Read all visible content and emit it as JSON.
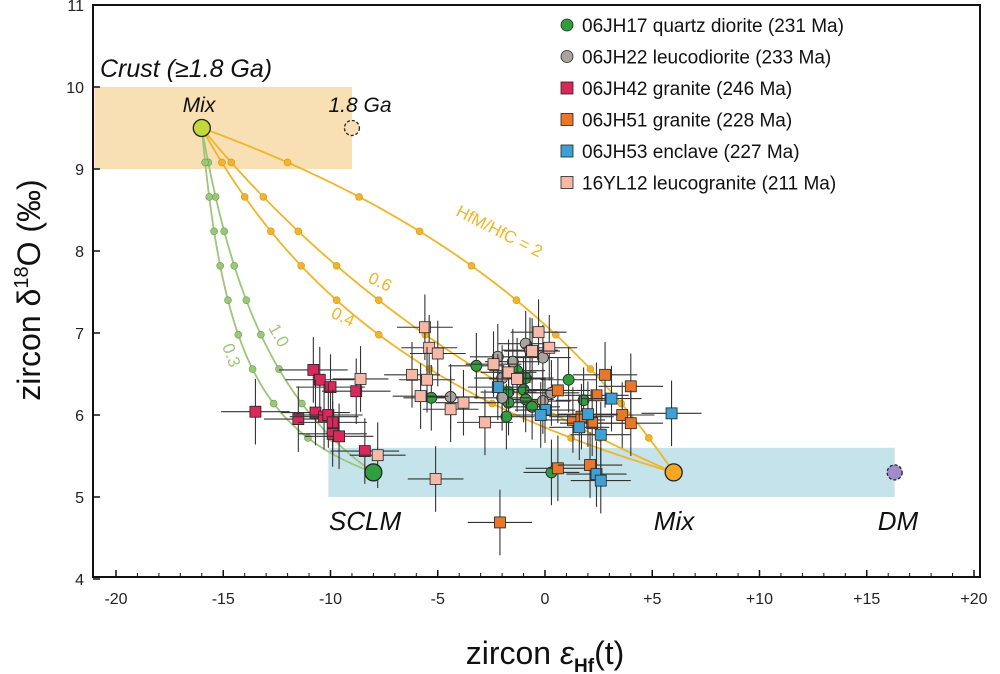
{
  "chart_data": {
    "type": "scatter",
    "title": "",
    "xlabel": {
      "prefix": "zircon ",
      "symbol": "ε",
      "sub": "Hf",
      "suffix": "(t)"
    },
    "ylabel": {
      "prefix": "zircon δ",
      "sup": "18",
      "suffix": "O (‰)"
    },
    "xlim": [
      -21,
      20.3
    ],
    "ylim": [
      4,
      11
    ],
    "xticks": [
      -20,
      -15,
      -10,
      -5,
      0,
      5,
      10,
      15,
      20
    ],
    "xtick_labels": [
      "-20",
      "-15",
      "-10",
      "-5",
      "0",
      "+5",
      "+10",
      "+15",
      "+20"
    ],
    "yticks": [
      4,
      5,
      6,
      7,
      8,
      9,
      10,
      11
    ],
    "ytick_labels": [
      "4",
      "5",
      "6",
      "7",
      "8",
      "9",
      "10",
      "11"
    ],
    "grid": false,
    "legend_position": "top-right",
    "series": [
      {
        "name": "06JH17 quartz diorite (231 Ma)",
        "marker": "circle",
        "color": "#2e9e3e",
        "xerr": 1.3,
        "yerr": 0.4,
        "points": [
          [
            -5.3,
            6.21
          ],
          [
            -3.2,
            6.6
          ],
          [
            -1.3,
            6.54
          ],
          [
            -0.9,
            6.45
          ],
          [
            -1.7,
            6.28
          ],
          [
            -1.0,
            6.31
          ],
          [
            -0.9,
            6.19
          ],
          [
            -1.7,
            6.15
          ],
          [
            -1.8,
            5.98
          ],
          [
            -0.6,
            6.1
          ],
          [
            1.1,
            6.43
          ],
          [
            1.8,
            6.18
          ],
          [
            0.3,
            5.3
          ]
        ]
      },
      {
        "name": "06JH22 leucodiorite (233 Ma)",
        "marker": "circle",
        "color": "#aaa49f",
        "xerr": 1.3,
        "yerr": 0.4,
        "points": [
          [
            -0.9,
            6.87
          ],
          [
            -2.2,
            6.71
          ],
          [
            -1.5,
            6.65
          ],
          [
            -0.1,
            6.7
          ],
          [
            -2.0,
            6.45
          ],
          [
            -2.0,
            6.21
          ],
          [
            0.3,
            6.27
          ],
          [
            -0.1,
            6.17
          ],
          [
            -4.4,
            6.22
          ],
          [
            -0.7,
            6.79
          ]
        ]
      },
      {
        "name": "06JH42 granite (246 Ma)",
        "marker": "square",
        "color": "#d8285c",
        "xerr": 1.6,
        "yerr": 0.4,
        "points": [
          [
            -13.5,
            6.04
          ],
          [
            -10.8,
            6.55
          ],
          [
            -10.5,
            6.43
          ],
          [
            -10.0,
            6.34
          ],
          [
            -8.8,
            6.29
          ],
          [
            -11.5,
            5.95
          ],
          [
            -10.7,
            6.03
          ],
          [
            -10.3,
            5.98
          ],
          [
            -10.1,
            6.0
          ],
          [
            -9.9,
            5.91
          ],
          [
            -9.9,
            5.77
          ],
          [
            -9.6,
            5.74
          ],
          [
            -8.4,
            5.56
          ]
        ]
      },
      {
        "name": "06JH51 granite (228 Ma)",
        "marker": "square",
        "color": "#e8762b",
        "xerr": 1.5,
        "yerr": 0.4,
        "points": [
          [
            2.8,
            6.49
          ],
          [
            4.0,
            6.35
          ],
          [
            2.4,
            6.24
          ],
          [
            0.6,
            6.3
          ],
          [
            1.3,
            5.94
          ],
          [
            1.7,
            5.98
          ],
          [
            2.2,
            5.9
          ],
          [
            3.6,
            6.0
          ],
          [
            4.0,
            5.9
          ],
          [
            0.6,
            5.35
          ],
          [
            2.1,
            5.39
          ],
          [
            -2.1,
            4.69
          ]
        ]
      },
      {
        "name": "06JH53 enclave (227 Ma)",
        "marker": "square",
        "color": "#3fa0d5",
        "xerr": 1.4,
        "yerr": 0.4,
        "points": [
          [
            -2.2,
            6.34
          ],
          [
            0.0,
            6.06
          ],
          [
            -0.2,
            6.0
          ],
          [
            3.1,
            6.2
          ],
          [
            2.0,
            6.01
          ],
          [
            1.6,
            5.85
          ],
          [
            2.6,
            5.76
          ],
          [
            5.9,
            6.02
          ],
          [
            2.4,
            5.28
          ],
          [
            2.6,
            5.2
          ]
        ]
      },
      {
        "name": "16YL12 leucogranite (211 Ma)",
        "marker": "square",
        "color": "#f6b9a8",
        "xerr": 1.3,
        "yerr": 0.4,
        "points": [
          [
            -8.6,
            6.44
          ],
          [
            -7.8,
            5.51
          ],
          [
            -5.1,
            5.22
          ],
          [
            -5.6,
            7.07
          ],
          [
            -5.4,
            6.82
          ],
          [
            -5.0,
            6.75
          ],
          [
            -6.2,
            6.49
          ],
          [
            -5.5,
            6.43
          ],
          [
            -5.8,
            6.23
          ],
          [
            -4.4,
            6.07
          ],
          [
            -0.3,
            7.01
          ],
          [
            0.2,
            6.82
          ],
          [
            -2.4,
            6.62
          ],
          [
            -1.7,
            6.52
          ],
          [
            -1.3,
            6.44
          ],
          [
            -0.6,
            6.78
          ],
          [
            -2.8,
            5.91
          ],
          [
            -3.8,
            6.15
          ]
        ]
      }
    ],
    "fields": [
      {
        "label": "Crust (≥1.8 Ga)",
        "x": [
          -21,
          -9
        ],
        "y": [
          9,
          10
        ],
        "color": "#f8dfb4"
      },
      {
        "label": "",
        "x": [
          -10.1,
          16.3
        ],
        "y": [
          5.0,
          5.6
        ],
        "color": "#c5e3ea"
      }
    ],
    "endmembers": [
      {
        "label": "Mix",
        "x": -16,
        "y": 9.5,
        "color": "#c3d83a",
        "dashed": false
      },
      {
        "label": "1.8 Ga",
        "x": -9,
        "y": 9.5,
        "color": "#f8dfb4",
        "dashed": true
      },
      {
        "label": "SCLM",
        "x": -8,
        "y": 5.3,
        "color": "#2e9e3e",
        "dashed": false
      },
      {
        "label": "Mix",
        "x": 6,
        "y": 5.3,
        "color": "#f5a623",
        "dashed": false
      },
      {
        "label": "DM",
        "x": 16.3,
        "y": 5.3,
        "color": "#a08cc8",
        "dashed": true
      }
    ],
    "mixing_curves": [
      {
        "label": "HfM/HfC = 2",
        "ratio": 2,
        "to": "Mix",
        "color": "#f0b52a"
      },
      {
        "label": "0.6",
        "ratio": 0.6,
        "to": "Mix",
        "color": "#f0b52a"
      },
      {
        "label": "0.4",
        "ratio": 0.4,
        "to": "Mix",
        "color": "#f0b52a"
      },
      {
        "label": "1.0",
        "ratio": 1.0,
        "to": "SCLM",
        "color": "#9cc77a"
      },
      {
        "label": "0.3",
        "ratio": 0.3,
        "to": "SCLM",
        "color": "#9cc77a"
      }
    ]
  }
}
